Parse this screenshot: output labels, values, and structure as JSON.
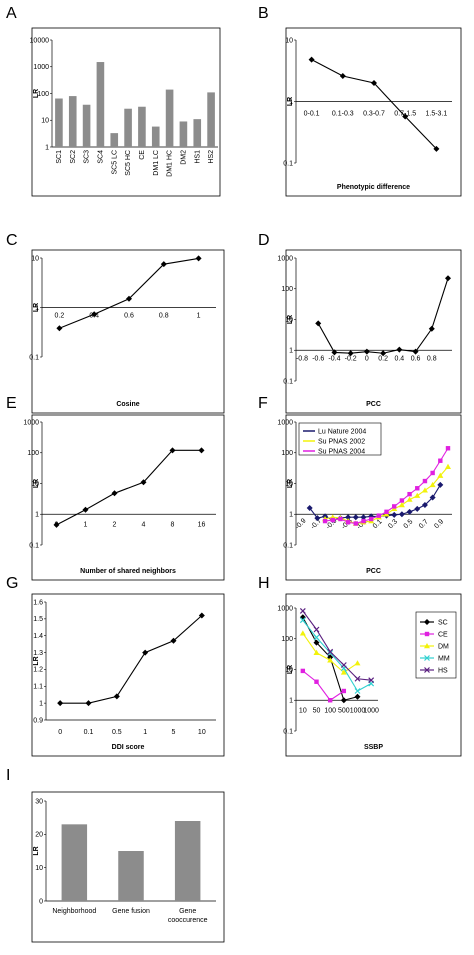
{
  "panels": [
    {
      "letter": "A",
      "chart_data": {
        "type": "bar",
        "log_scale": true,
        "ylim": [
          1,
          10000
        ],
        "yticks": [
          "1",
          "10",
          "100",
          "1000",
          "10000"
        ],
        "categories": [
          "SC1",
          "SC2",
          "SC3",
          "SC4",
          "SC5 LC",
          "SC5 HC",
          "CE",
          "DM1 LC",
          "DM1 HC",
          "DM2",
          "HS1",
          "HS2"
        ],
        "values": [
          65,
          80,
          38,
          1500,
          3.3,
          27,
          32,
          5.8,
          140,
          9,
          11,
          110
        ],
        "ylabel": "LR",
        "xlabel": "",
        "bar_color": "#8c8c8c"
      }
    },
    {
      "letter": "B",
      "chart_data": {
        "type": "line",
        "log_scale": true,
        "ylim": [
          0.1,
          10
        ],
        "yticks": [
          "0.1",
          "1",
          "10"
        ],
        "categories": [
          "0-0.1",
          "0.1-0.3",
          "0.3-0.7",
          "0.7-1.5",
          "1.5-3.1"
        ],
        "values": [
          4.8,
          2.6,
          2.0,
          0.57,
          0.17
        ],
        "ylabel": "LR",
        "xlabel": "Phenotypic difference"
      }
    },
    {
      "letter": "C",
      "chart_data": {
        "type": "line",
        "log_scale": true,
        "ylim": [
          0.1,
          10
        ],
        "yticks": [
          "0.1",
          "1",
          "10"
        ],
        "categories": [
          "0.2",
          "0.4",
          "0.6",
          "0.8",
          "1"
        ],
        "values": [
          0.38,
          0.73,
          1.5,
          7.5,
          9.8
        ],
        "ylabel": "LR",
        "xlabel": "Cosine"
      }
    },
    {
      "letter": "D",
      "chart_data": {
        "type": "line",
        "log_scale": true,
        "ylim": [
          0.1,
          1000
        ],
        "yticks": [
          "0.1",
          "1",
          "10",
          "100",
          "1000"
        ],
        "xticks": [
          "-0.8",
          "-0.6",
          "-0.4",
          "-0.2",
          "0",
          "0.2",
          "0.4",
          "0.6",
          "0.8"
        ],
        "x": [
          -0.6,
          -0.4,
          -0.2,
          0.0,
          0.2,
          0.4,
          0.6,
          0.8,
          1.0
        ],
        "values": [
          7.5,
          0.85,
          0.8,
          0.9,
          0.8,
          1.05,
          0.9,
          5.0,
          220
        ],
        "ylabel": "LR",
        "xlabel": "PCC"
      }
    },
    {
      "letter": "E",
      "chart_data": {
        "type": "line",
        "log_scale": true,
        "ylim": [
          0.1,
          1000
        ],
        "yticks": [
          "0.1",
          "1",
          "10",
          "100",
          "1000"
        ],
        "categories": [
          "0",
          "1",
          "2",
          "4",
          "8",
          "16"
        ],
        "values": [
          0.45,
          1.4,
          4.8,
          11,
          120,
          120
        ],
        "ylabel": "LR",
        "xlabel": "Number of shared neighbors"
      }
    },
    {
      "letter": "F",
      "chart_data": {
        "type": "line",
        "log_scale": true,
        "ylim": [
          0.1,
          1000
        ],
        "yticks": [
          "0.1",
          "1",
          "10",
          "100",
          "1000"
        ],
        "xticks": [
          "-0.9",
          "-0.7",
          "-0.5",
          "-0.3",
          "-0.1",
          "0.1",
          "0.3",
          "0.5",
          "0.7",
          "0.9"
        ],
        "ylabel": "LR",
        "xlabel": "PCC",
        "series": [
          {
            "name": "Lu Nature 2004",
            "color": "#1a1a6e",
            "marker": "diamond",
            "x": [
              -0.8,
              -0.7,
              -0.6,
              -0.5,
              -0.4,
              -0.3,
              -0.2,
              -0.1,
              0,
              0.1,
              0.2,
              0.3,
              0.4,
              0.5,
              0.6,
              0.7,
              0.8,
              0.9
            ],
            "values": [
              1.6,
              0.75,
              0.85,
              0.65,
              0.75,
              0.8,
              0.8,
              0.8,
              0.85,
              0.85,
              0.9,
              0.95,
              1.0,
              1.2,
              1.5,
              2.0,
              3.5,
              9.0
            ]
          },
          {
            "name": "Su PNAS 2002",
            "color": "#f2f20a",
            "marker": "triangle",
            "x": [
              -0.6,
              -0.5,
              -0.4,
              -0.3,
              -0.2,
              -0.1,
              0,
              0.1,
              0.2,
              0.3,
              0.4,
              0.5,
              0.6,
              0.7,
              0.8,
              0.9,
              1.0
            ],
            "values": [
              0.7,
              0.8,
              0.75,
              0.6,
              0.5,
              0.55,
              0.6,
              0.8,
              1.0,
              1.5,
              2.0,
              3.0,
              4.0,
              6.0,
              9.0,
              18,
              35
            ]
          },
          {
            "name": "Su PNAS 2004",
            "color": "#e020e0",
            "marker": "square",
            "x": [
              -0.6,
              -0.5,
              -0.4,
              -0.3,
              -0.2,
              -0.1,
              0,
              0.1,
              0.2,
              0.3,
              0.4,
              0.5,
              0.6,
              0.7,
              0.8,
              0.9,
              1.0
            ],
            "values": [
              0.6,
              0.65,
              0.7,
              0.55,
              0.5,
              0.6,
              0.7,
              0.9,
              1.2,
              1.8,
              2.8,
              4.5,
              7,
              12,
              22,
              55,
              140
            ]
          }
        ],
        "legend": "top-left"
      }
    },
    {
      "letter": "G",
      "chart_data": {
        "type": "line",
        "log_scale": false,
        "ylim": [
          0.9,
          1.6
        ],
        "yticks": [
          "0.9",
          "1",
          "1.1",
          "1.2",
          "1.3",
          "1.4",
          "1.5",
          "1.6"
        ],
        "categories": [
          "0",
          "0.1",
          "0.5",
          "1",
          "5",
          "10"
        ],
        "values": [
          1.0,
          1.0,
          1.04,
          1.3,
          1.37,
          1.52
        ],
        "ylabel": "LR",
        "xlabel": "DDI score"
      }
    },
    {
      "letter": "H",
      "chart_data": {
        "type": "line",
        "log_scale": true,
        "ylim": [
          0.1,
          1000
        ],
        "yticks": [
          "0.1",
          "1",
          "10",
          "100",
          "1000"
        ],
        "categories": [
          "10",
          "50",
          "100",
          "500",
          "1000",
          "1000"
        ],
        "ylabel": "LR",
        "xlabel": "SSBP",
        "series": [
          {
            "name": "SC",
            "color": "#000000",
            "marker": "diamond",
            "values": [
              500,
              75,
              25,
              1.0,
              1.3,
              null
            ]
          },
          {
            "name": "CE",
            "color": "#e020e0",
            "marker": "square",
            "values": [
              9,
              4,
              1.0,
              2.0,
              null,
              null
            ]
          },
          {
            "name": "DM",
            "color": "#f2f20a",
            "marker": "triangle",
            "values": [
              150,
              35,
              20,
              8,
              16,
              null
            ]
          },
          {
            "name": "MM",
            "color": "#30d0d0",
            "marker": "x",
            "values": [
              400,
              110,
              35,
              11,
              2.0,
              3.5
            ]
          },
          {
            "name": "HS",
            "color": "#5a2080",
            "marker": "x",
            "values": [
              800,
              200,
              38,
              14,
              5,
              4.5
            ]
          }
        ],
        "legend": "right"
      }
    },
    {
      "letter": "I",
      "chart_data": {
        "type": "bar",
        "log_scale": false,
        "ylim": [
          0,
          30
        ],
        "yticks": [
          "0",
          "10",
          "20",
          "30"
        ],
        "categories": [
          "Neighborhood",
          "Gene fusion",
          "Gene cooccurence"
        ],
        "values": [
          23,
          15,
          24
        ],
        "ylabel": "LR",
        "xlabel": "",
        "bar_color": "#8c8c8c"
      }
    }
  ]
}
